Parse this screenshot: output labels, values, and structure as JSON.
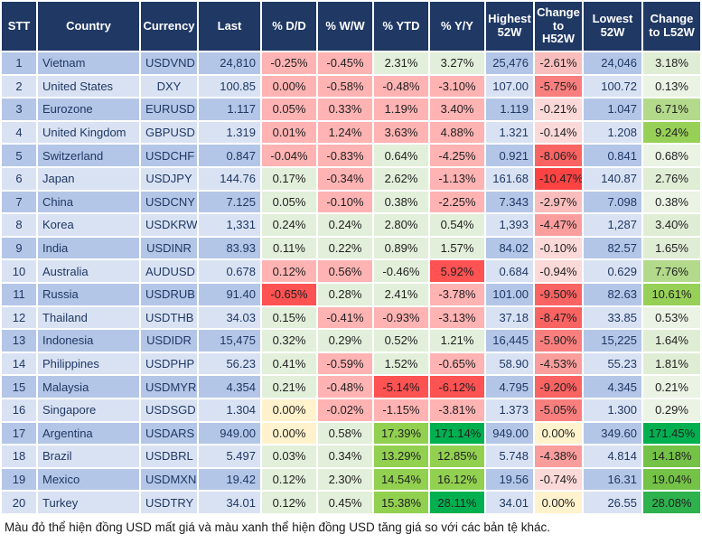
{
  "colors": {
    "header_bg": "#1F3864",
    "header_text": "#ffffff",
    "row_odd": "#B4C6E7",
    "row_even": "#D9E2F3",
    "pink": "#FFB3B3",
    "red": "#FF5252",
    "gl": "#E2EFDA",
    "gm": "#92D050",
    "gd": "#00B050",
    "yellow": "#FFF2CC",
    "r1": "#FBD9D8",
    "r2": "#F8BDBC",
    "r3": "#FA9E9D",
    "r4": "#F97F7E",
    "r5": "#F96362",
    "r6": "#FB4343",
    "g0": "#EAF3E4",
    "g1": "#E0EDD5",
    "g2": "#B3D98B",
    "g3": "#97D057",
    "g4": "#74C246",
    "g5": "#2DB24E"
  },
  "table": {
    "columns": [
      {
        "key": "stt",
        "label": "STT"
      },
      {
        "key": "country",
        "label": "Country"
      },
      {
        "key": "currency",
        "label": "Currency"
      },
      {
        "key": "last",
        "label": "Last"
      },
      {
        "key": "dd",
        "label": "% D/D"
      },
      {
        "key": "ww",
        "label": "% W/W"
      },
      {
        "key": "ytd",
        "label": "% YTD"
      },
      {
        "key": "yy",
        "label": "% Y/Y"
      },
      {
        "key": "high52",
        "label": "Highest 52W"
      },
      {
        "key": "chg_h",
        "label": "Change to H52W"
      },
      {
        "key": "low52",
        "label": "Lowest 52W"
      },
      {
        "key": "chg_l",
        "label": "Change to L52W"
      }
    ],
    "rows": [
      {
        "stt": "1",
        "country": "Vietnam",
        "currency": "USDVND",
        "last": "24,810",
        "dd": {
          "v": "-0.25%",
          "c": "pink"
        },
        "ww": {
          "v": "-0.45%",
          "c": "pink"
        },
        "ytd": {
          "v": "2.31%",
          "c": "gl"
        },
        "yy": {
          "v": "3.27%",
          "c": "gl"
        },
        "high52": "25,476",
        "chg_h": {
          "v": "-2.61%",
          "c": "r2"
        },
        "low52": "24,046",
        "chg_l": {
          "v": "3.18%",
          "c": "g1"
        }
      },
      {
        "stt": "2",
        "country": "United States",
        "currency": "DXY",
        "last": "100.85",
        "dd": {
          "v": "0.00%",
          "c": "pink"
        },
        "ww": {
          "v": "-0.58%",
          "c": "pink"
        },
        "ytd": {
          "v": "-0.48%",
          "c": "pink"
        },
        "yy": {
          "v": "-3.10%",
          "c": "pink"
        },
        "high52": "107.00",
        "chg_h": {
          "v": "-5.75%",
          "c": "r4"
        },
        "low52": "100.72",
        "chg_l": {
          "v": "0.13%",
          "c": "g0"
        }
      },
      {
        "stt": "3",
        "country": "Eurozone",
        "currency": "EURUSD",
        "last": "1.117",
        "dd": {
          "v": "0.05%",
          "c": "pink"
        },
        "ww": {
          "v": "0.33%",
          "c": "pink"
        },
        "ytd": {
          "v": "1.19%",
          "c": "pink"
        },
        "yy": {
          "v": "3.40%",
          "c": "pink"
        },
        "high52": "1.119",
        "chg_h": {
          "v": "-0.21%",
          "c": "r1"
        },
        "low52": "1.047",
        "chg_l": {
          "v": "6.71%",
          "c": "g2"
        }
      },
      {
        "stt": "4",
        "country": "United Kingdom",
        "currency": "GBPUSD",
        "last": "1.319",
        "dd": {
          "v": "0.01%",
          "c": "pink"
        },
        "ww": {
          "v": "1.24%",
          "c": "pink"
        },
        "ytd": {
          "v": "3.63%",
          "c": "pink"
        },
        "yy": {
          "v": "4.88%",
          "c": "pink"
        },
        "high52": "1.321",
        "chg_h": {
          "v": "-0.14%",
          "c": "r1"
        },
        "low52": "1.208",
        "chg_l": {
          "v": "9.24%",
          "c": "g3"
        }
      },
      {
        "stt": "5",
        "country": "Switzerland",
        "currency": "USDCHF",
        "last": "0.847",
        "dd": {
          "v": "-0.04%",
          "c": "pink"
        },
        "ww": {
          "v": "-0.83%",
          "c": "pink"
        },
        "ytd": {
          "v": "0.64%",
          "c": "gl"
        },
        "yy": {
          "v": "-4.25%",
          "c": "pink"
        },
        "high52": "0.921",
        "chg_h": {
          "v": "-8.06%",
          "c": "r5"
        },
        "low52": "0.841",
        "chg_l": {
          "v": "0.68%",
          "c": "g0"
        }
      },
      {
        "stt": "6",
        "country": "Japan",
        "currency": "USDJPY",
        "last": "144.76",
        "dd": {
          "v": "0.17%",
          "c": "gl"
        },
        "ww": {
          "v": "-0.34%",
          "c": "pink"
        },
        "ytd": {
          "v": "2.62%",
          "c": "gl"
        },
        "yy": {
          "v": "-1.13%",
          "c": "pink"
        },
        "high52": "161.68",
        "chg_h": {
          "v": "-10.47%",
          "c": "r6"
        },
        "low52": "140.87",
        "chg_l": {
          "v": "2.76%",
          "c": "g1"
        }
      },
      {
        "stt": "7",
        "country": "China",
        "currency": "USDCNY",
        "last": "7.125",
        "dd": {
          "v": "0.05%",
          "c": "gl"
        },
        "ww": {
          "v": "-0.10%",
          "c": "pink"
        },
        "ytd": {
          "v": "0.38%",
          "c": "gl"
        },
        "yy": {
          "v": "-2.25%",
          "c": "pink"
        },
        "high52": "7.343",
        "chg_h": {
          "v": "-2.97%",
          "c": "r2"
        },
        "low52": "7.098",
        "chg_l": {
          "v": "0.38%",
          "c": "g0"
        }
      },
      {
        "stt": "8",
        "country": "Korea",
        "currency": "USDKRW",
        "last": "1,331",
        "dd": {
          "v": "0.24%",
          "c": "gl"
        },
        "ww": {
          "v": "0.24%",
          "c": "gl"
        },
        "ytd": {
          "v": "2.80%",
          "c": "gl"
        },
        "yy": {
          "v": "0.54%",
          "c": "gl"
        },
        "high52": "1,393",
        "chg_h": {
          "v": "-4.47%",
          "c": "r3"
        },
        "low52": "1,287",
        "chg_l": {
          "v": "3.40%",
          "c": "g1"
        }
      },
      {
        "stt": "9",
        "country": "India",
        "currency": "USDINR",
        "last": "83.93",
        "dd": {
          "v": "0.11%",
          "c": "gl"
        },
        "ww": {
          "v": "0.22%",
          "c": "gl"
        },
        "ytd": {
          "v": "0.89%",
          "c": "gl"
        },
        "yy": {
          "v": "1.57%",
          "c": "gl"
        },
        "high52": "84.02",
        "chg_h": {
          "v": "-0.10%",
          "c": "r1"
        },
        "low52": "82.57",
        "chg_l": {
          "v": "1.65%",
          "c": "g1"
        }
      },
      {
        "stt": "10",
        "country": "Australia",
        "currency": "AUDUSD",
        "last": "0.678",
        "dd": {
          "v": "0.12%",
          "c": "pink"
        },
        "ww": {
          "v": "0.56%",
          "c": "pink"
        },
        "ytd": {
          "v": "-0.46%",
          "c": "gl"
        },
        "yy": {
          "v": "5.92%",
          "c": "red"
        },
        "high52": "0.684",
        "chg_h": {
          "v": "-0.94%",
          "c": "r1"
        },
        "low52": "0.629",
        "chg_l": {
          "v": "7.76%",
          "c": "g2"
        }
      },
      {
        "stt": "11",
        "country": "Russia",
        "currency": "USDRUB",
        "last": "91.40",
        "dd": {
          "v": "-0.65%",
          "c": "red"
        },
        "ww": {
          "v": "0.28%",
          "c": "gl"
        },
        "ytd": {
          "v": "2.41%",
          "c": "gl"
        },
        "yy": {
          "v": "-3.78%",
          "c": "pink"
        },
        "high52": "101.00",
        "chg_h": {
          "v": "-9.50%",
          "c": "r5"
        },
        "low52": "82.63",
        "chg_l": {
          "v": "10.61%",
          "c": "g3"
        }
      },
      {
        "stt": "12",
        "country": "Thailand",
        "currency": "USDTHB",
        "last": "34.03",
        "dd": {
          "v": "0.15%",
          "c": "gl"
        },
        "ww": {
          "v": "-0.41%",
          "c": "pink"
        },
        "ytd": {
          "v": "-0.93%",
          "c": "pink"
        },
        "yy": {
          "v": "-3.13%",
          "c": "pink"
        },
        "high52": "37.18",
        "chg_h": {
          "v": "-8.47%",
          "c": "r5"
        },
        "low52": "33.85",
        "chg_l": {
          "v": "0.53%",
          "c": "g0"
        }
      },
      {
        "stt": "13",
        "country": "Indonesia",
        "currency": "USDIDR",
        "last": "15,475",
        "dd": {
          "v": "0.32%",
          "c": "gl"
        },
        "ww": {
          "v": "0.29%",
          "c": "gl"
        },
        "ytd": {
          "v": "0.52%",
          "c": "gl"
        },
        "yy": {
          "v": "1.21%",
          "c": "gl"
        },
        "high52": "16,445",
        "chg_h": {
          "v": "-5.90%",
          "c": "r4"
        },
        "low52": "15,225",
        "chg_l": {
          "v": "1.64%",
          "c": "g1"
        }
      },
      {
        "stt": "14",
        "country": "Philippines",
        "currency": "USDPHP",
        "last": "56.23",
        "dd": {
          "v": "0.41%",
          "c": "gl"
        },
        "ww": {
          "v": "-0.59%",
          "c": "pink"
        },
        "ytd": {
          "v": "1.52%",
          "c": "gl"
        },
        "yy": {
          "v": "-0.65%",
          "c": "pink"
        },
        "high52": "58.90",
        "chg_h": {
          "v": "-4.53%",
          "c": "r3"
        },
        "low52": "55.23",
        "chg_l": {
          "v": "1.81%",
          "c": "g1"
        }
      },
      {
        "stt": "15",
        "country": "Malaysia",
        "currency": "USDMYR",
        "last": "4.354",
        "dd": {
          "v": "0.21%",
          "c": "gl"
        },
        "ww": {
          "v": "-0.48%",
          "c": "pink"
        },
        "ytd": {
          "v": "-5.14%",
          "c": "red"
        },
        "yy": {
          "v": "-6.12%",
          "c": "red"
        },
        "high52": "4.795",
        "chg_h": {
          "v": "-9.20%",
          "c": "r5"
        },
        "low52": "4.345",
        "chg_l": {
          "v": "0.21%",
          "c": "g0"
        }
      },
      {
        "stt": "16",
        "country": "Singapore",
        "currency": "USDSGD",
        "last": "1.304",
        "dd": {
          "v": "0.00%",
          "c": "yellow"
        },
        "ww": {
          "v": "-0.02%",
          "c": "pink"
        },
        "ytd": {
          "v": "-1.15%",
          "c": "pink"
        },
        "yy": {
          "v": "-3.81%",
          "c": "pink"
        },
        "high52": "1.373",
        "chg_h": {
          "v": "-5.05%",
          "c": "r4"
        },
        "low52": "1.300",
        "chg_l": {
          "v": "0.29%",
          "c": "g0"
        }
      },
      {
        "stt": "17",
        "country": "Argentina",
        "currency": "USDARS",
        "last": "949.00",
        "dd": {
          "v": "0.00%",
          "c": "yellow"
        },
        "ww": {
          "v": "0.58%",
          "c": "gl"
        },
        "ytd": {
          "v": "17.39%",
          "c": "gm"
        },
        "yy": {
          "v": "171.14%",
          "c": "gd"
        },
        "high52": "949.00",
        "chg_h": {
          "v": "0.00%",
          "c": "yellow"
        },
        "low52": "349.60",
        "chg_l": {
          "v": "171.45%",
          "c": "gd"
        }
      },
      {
        "stt": "18",
        "country": "Brazil",
        "currency": "USDBRL",
        "last": "5.497",
        "dd": {
          "v": "0.03%",
          "c": "gl"
        },
        "ww": {
          "v": "0.34%",
          "c": "gl"
        },
        "ytd": {
          "v": "13.29%",
          "c": "gm"
        },
        "yy": {
          "v": "12.85%",
          "c": "gm"
        },
        "high52": "5.748",
        "chg_h": {
          "v": "-4.38%",
          "c": "r3"
        },
        "low52": "4.814",
        "chg_l": {
          "v": "14.18%",
          "c": "g4"
        }
      },
      {
        "stt": "19",
        "country": "Mexico",
        "currency": "USDMXN",
        "last": "19.42",
        "dd": {
          "v": "0.12%",
          "c": "gl"
        },
        "ww": {
          "v": "2.30%",
          "c": "gl"
        },
        "ytd": {
          "v": "14.54%",
          "c": "gm"
        },
        "yy": {
          "v": "16.12%",
          "c": "gm"
        },
        "high52": "19.56",
        "chg_h": {
          "v": "-0.74%",
          "c": "r1"
        },
        "low52": "16.31",
        "chg_l": {
          "v": "19.04%",
          "c": "g4"
        }
      },
      {
        "stt": "20",
        "country": "Turkey",
        "currency": "USDTRY",
        "last": "34.01",
        "dd": {
          "v": "0.12%",
          "c": "gl"
        },
        "ww": {
          "v": "0.45%",
          "c": "gl"
        },
        "ytd": {
          "v": "15.38%",
          "c": "gm"
        },
        "yy": {
          "v": "28.11%",
          "c": "gd"
        },
        "high52": "34.01",
        "chg_h": {
          "v": "0.00%",
          "c": "yellow"
        },
        "low52": "26.55",
        "chg_l": {
          "v": "28.08%",
          "c": "g5"
        }
      }
    ]
  },
  "footer": {
    "note": "Màu đỏ thể hiện đồng USD mất giá và màu xanh thể hiện đồng USD tăng giá so với các bản tệ khác."
  }
}
